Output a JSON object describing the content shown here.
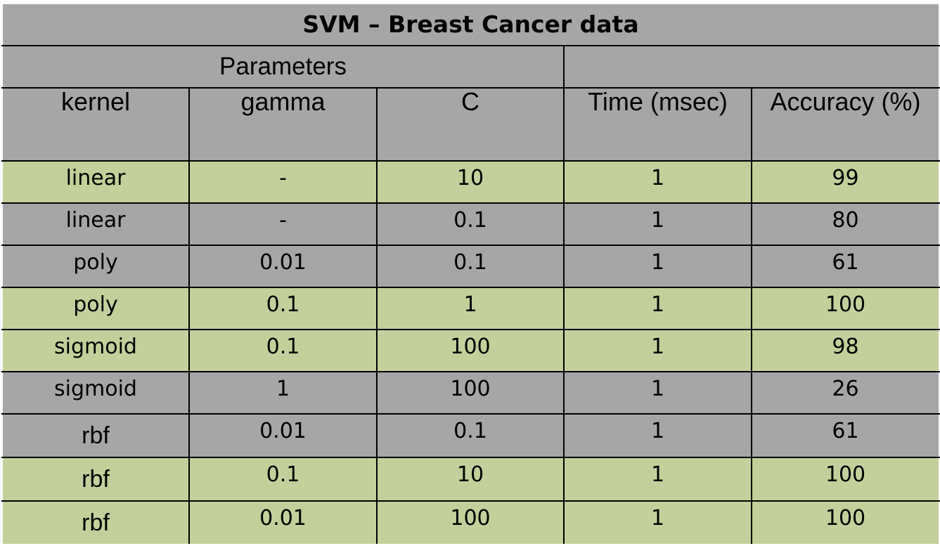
{
  "title": "SVM – Breast Cancer data",
  "group_header": "Parameters",
  "columns": {
    "kernel": "kernel",
    "gamma": "gamma",
    "c": "C",
    "time": "Time (msec)",
    "accuracy": "Accuracy (%)"
  },
  "colors": {
    "header_fill": "#a6a6a6",
    "highlight_fill": "#c3d09b",
    "border": "#000000"
  },
  "rows": [
    {
      "kernel": "linear",
      "gamma": "-",
      "c": "10",
      "time": "1",
      "accuracy": "99",
      "highlight": true
    },
    {
      "kernel": "linear",
      "gamma": "-",
      "c": "0.1",
      "time": "1",
      "accuracy": "80",
      "highlight": false
    },
    {
      "kernel": "poly",
      "gamma": "0.01",
      "c": "0.1",
      "time": "1",
      "accuracy": "61",
      "highlight": false
    },
    {
      "kernel": "poly",
      "gamma": "0.1",
      "c": "1",
      "time": "1",
      "accuracy": "100",
      "highlight": true
    },
    {
      "kernel": "sigmoid",
      "gamma": "0.1",
      "c": "100",
      "time": "1",
      "accuracy": "98",
      "highlight": true
    },
    {
      "kernel": "sigmoid",
      "gamma": "1",
      "c": "100",
      "time": "1",
      "accuracy": "26",
      "highlight": false
    },
    {
      "kernel": "rbf",
      "gamma": "0.01",
      "c": "0.1",
      "time": "1",
      "accuracy": "61",
      "highlight": false
    },
    {
      "kernel": "rbf",
      "gamma": "0.1",
      "c": "10",
      "time": "1",
      "accuracy": "100",
      "highlight": true
    },
    {
      "kernel": "rbf",
      "gamma": "0.01",
      "c": "100",
      "time": "1",
      "accuracy": "100",
      "highlight": true
    }
  ]
}
